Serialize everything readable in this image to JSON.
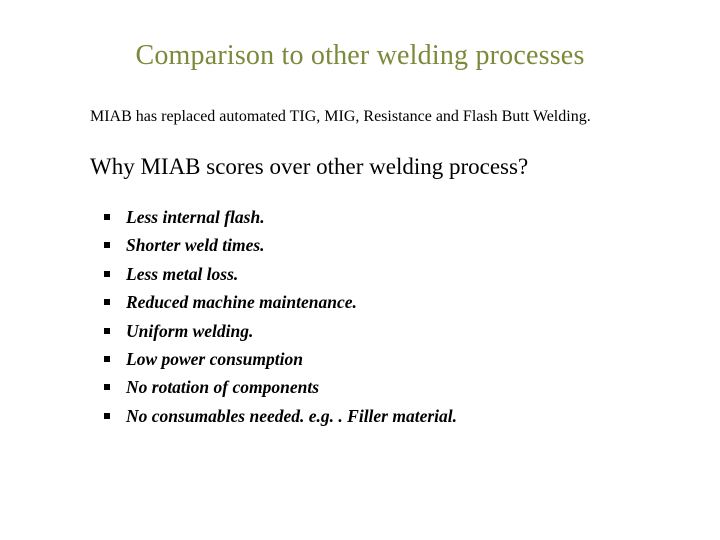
{
  "colors": {
    "title": "#7a8a3a",
    "body_text": "#000000",
    "background": "#ffffff",
    "bullet_marker": "#000000"
  },
  "typography": {
    "title_fontsize": 28,
    "intro_fontsize": 16,
    "subheading_fontsize": 23,
    "bullet_fontsize": 17.5,
    "bullet_weight": "bold",
    "bullet_style": "italic",
    "font_family": "Garamond / serif"
  },
  "title": "Comparison to other welding processes",
  "intro": "MIAB has replaced automated TIG, MIG, Resistance and Flash Butt Welding.",
  "subheading": "Why MIAB scores over other welding process?",
  "bullets": [
    "Less internal flash.",
    "Shorter weld times.",
    "Less metal loss.",
    "Reduced machine maintenance.",
    "Uniform welding.",
    "Low power consumption",
    "No rotation of components",
    "No consumables needed. e.g. . Filler material."
  ]
}
